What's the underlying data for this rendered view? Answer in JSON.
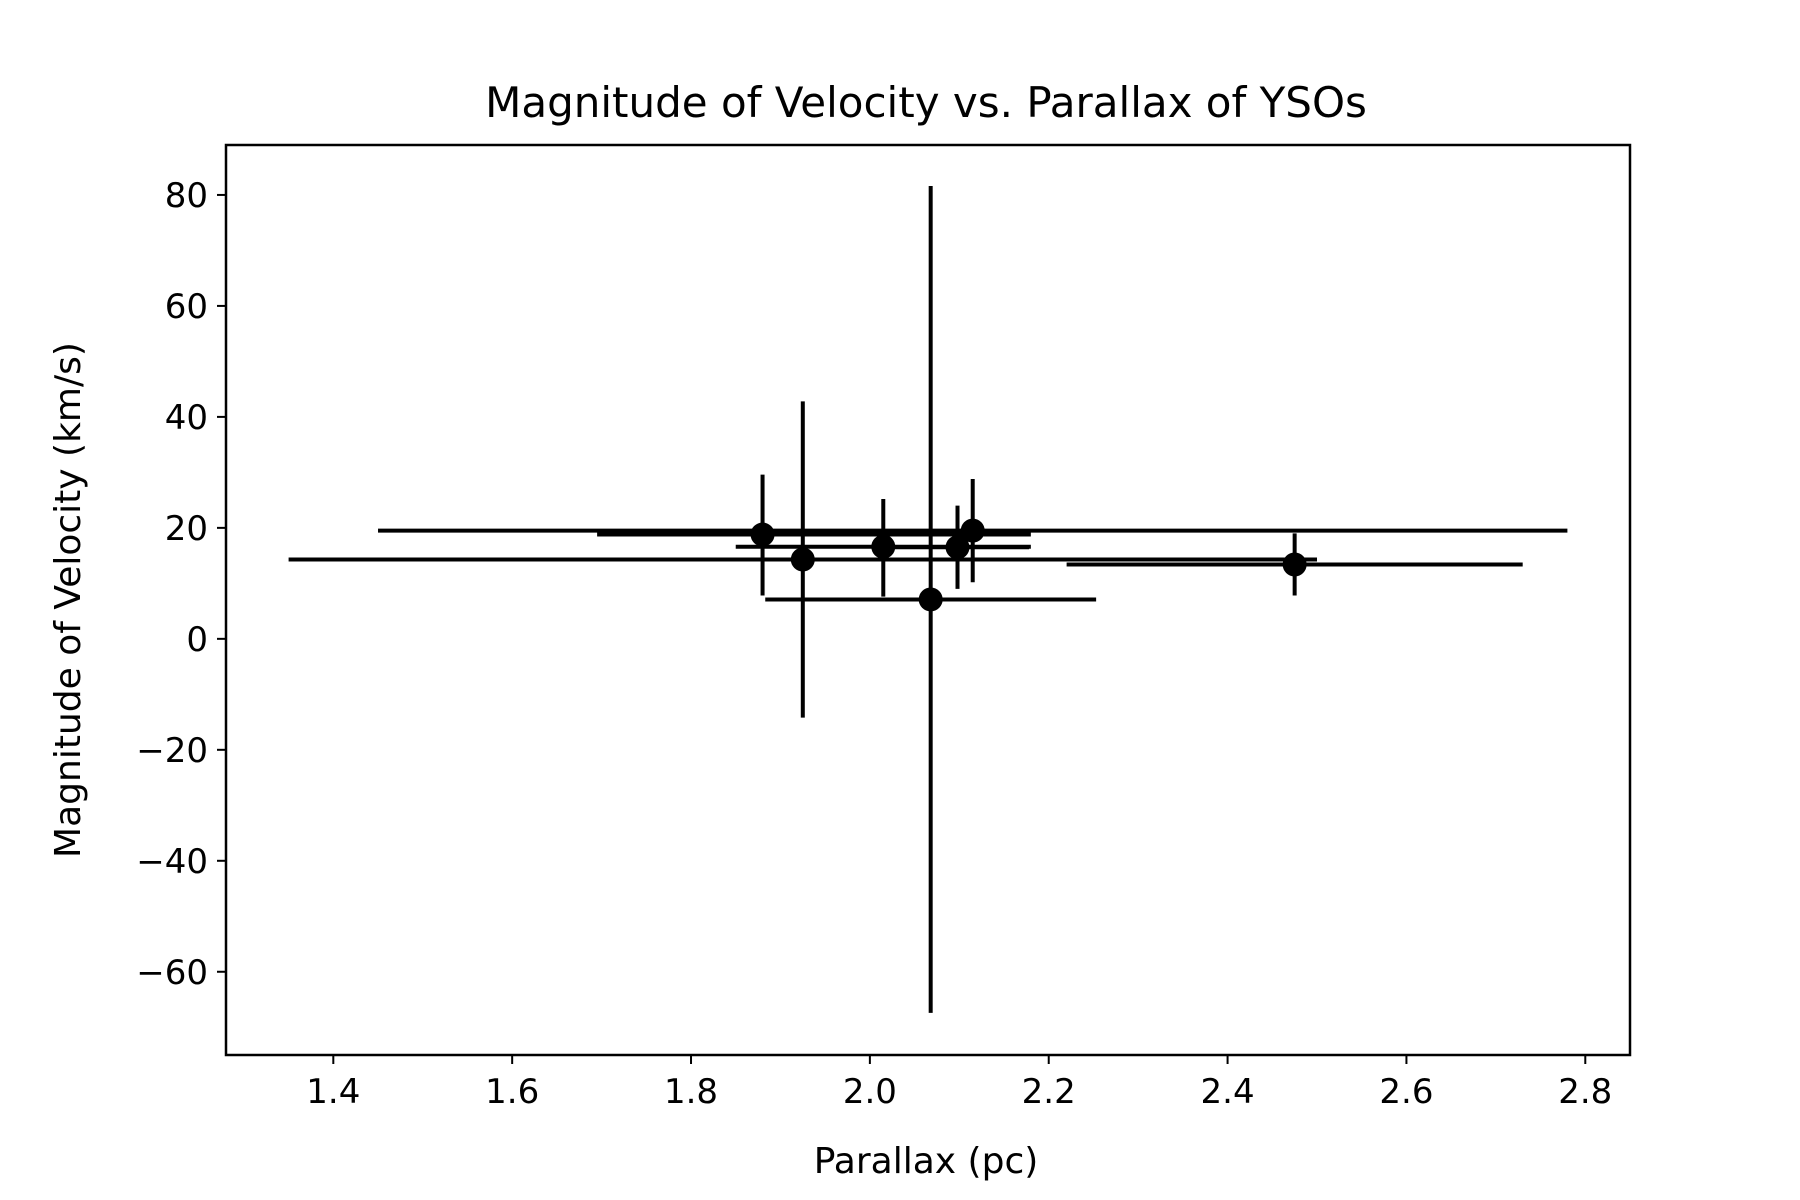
{
  "chart_data": {
    "type": "scatter",
    "title": "Magnitude of Velocity vs. Parallax of YSOs",
    "xlabel": "Parallax (pc)",
    "ylabel": "Magnitude of Velocity (km/s)",
    "xlim": [
      1.28,
      2.85
    ],
    "ylim": [
      -75,
      89
    ],
    "xticks": [
      1.4,
      1.6,
      1.8,
      2.0,
      2.2,
      2.4,
      2.6,
      2.8
    ],
    "xtick_labels": [
      "1.4",
      "1.6",
      "1.8",
      "2.0",
      "2.2",
      "2.4",
      "2.6",
      "2.8"
    ],
    "yticks": [
      -60,
      -40,
      -20,
      0,
      20,
      40,
      60,
      80
    ],
    "ytick_labels": [
      "−60",
      "−40",
      "−20",
      "0",
      "20",
      "40",
      "60",
      "80"
    ],
    "grid": false,
    "color": "#000000",
    "points": [
      {
        "x": 1.88,
        "y": 18.8,
        "xerr_low": 0.185,
        "xerr_high": 0.3,
        "yerr_low": 11.0,
        "yerr_high": 10.8
      },
      {
        "x": 1.925,
        "y": 14.3,
        "xerr_low": 0.575,
        "xerr_high": 0.575,
        "yerr_low": 28.5,
        "yerr_high": 28.5
      },
      {
        "x": 2.015,
        "y": 16.6,
        "xerr_low": 0.165,
        "xerr_high": 0.165,
        "yerr_low": 9.0,
        "yerr_high": 8.6
      },
      {
        "x": 2.068,
        "y": 7.1,
        "xerr_low": 0.185,
        "xerr_high": 0.185,
        "yerr_low": 74.5,
        "yerr_high": 74.5
      },
      {
        "x": 2.098,
        "y": 16.5,
        "xerr_low": 0.08,
        "xerr_high": 0.08,
        "yerr_low": 7.5,
        "yerr_high": 7.5
      },
      {
        "x": 2.115,
        "y": 19.5,
        "xerr_low": 0.665,
        "xerr_high": 0.665,
        "yerr_low": 9.3,
        "yerr_high": 9.3
      },
      {
        "x": 2.475,
        "y": 13.4,
        "xerr_low": 0.255,
        "xerr_high": 0.255,
        "yerr_low": 5.6,
        "yerr_high": 5.6
      }
    ]
  }
}
